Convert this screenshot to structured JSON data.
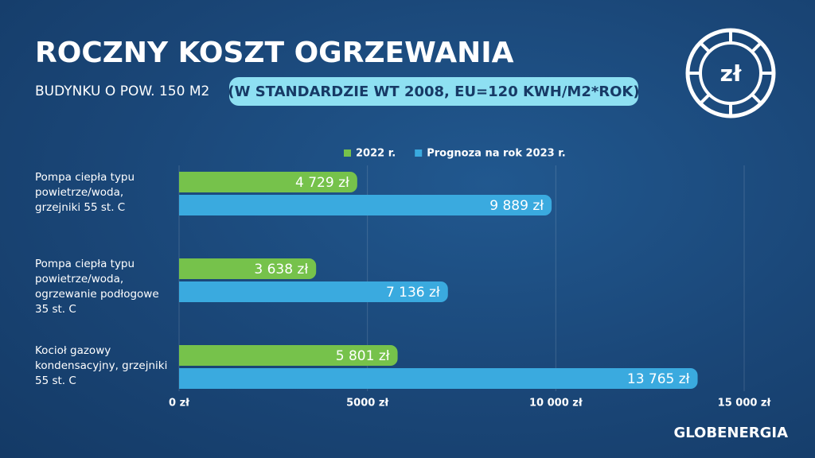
{
  "chart_data": {
    "type": "hbar",
    "title": "ROCZNY KOSZT OGRZEWANIA",
    "subtitle": "BUDYNKU O POW. 150 M2",
    "note": "(W STANDARDZIE WT 2008, EU=120 KWH/M2*ROK)",
    "logo": "zł",
    "brand": "GLOBENERGIA",
    "categories": [
      "Pompa ciepła typu powietrze/woda, grzejniki 55 st. C",
      "Pompa ciepła typu powietrze/woda, ogrzewanie podłogowe 35 st. C",
      "Kocioł gazowy kondensacyjny, grzejniki 55 st. C"
    ],
    "series": [
      {
        "name": "2022 r.",
        "color": "#76c24b",
        "values": [
          4729,
          3638,
          5801
        ],
        "value_labels": [
          "4 729 zł",
          "3 638 zł",
          "5 801 zł"
        ]
      },
      {
        "name": "Prognoza na rok 2023 r.",
        "color": "#3aaadf",
        "values": [
          9889,
          7136,
          13765
        ],
        "value_labels": [
          "9 889 zł",
          "7 136 zł",
          "13 765 zł"
        ]
      }
    ],
    "xlim": [
      0,
      15000
    ],
    "xticks": [
      {
        "value": 0,
        "label": "0 zł"
      },
      {
        "value": 5000,
        "label": "5000 zł"
      },
      {
        "value": 10000,
        "label": "10 000 zł"
      },
      {
        "value": 15000,
        "label": "15 000 zł"
      }
    ],
    "grid": true
  }
}
